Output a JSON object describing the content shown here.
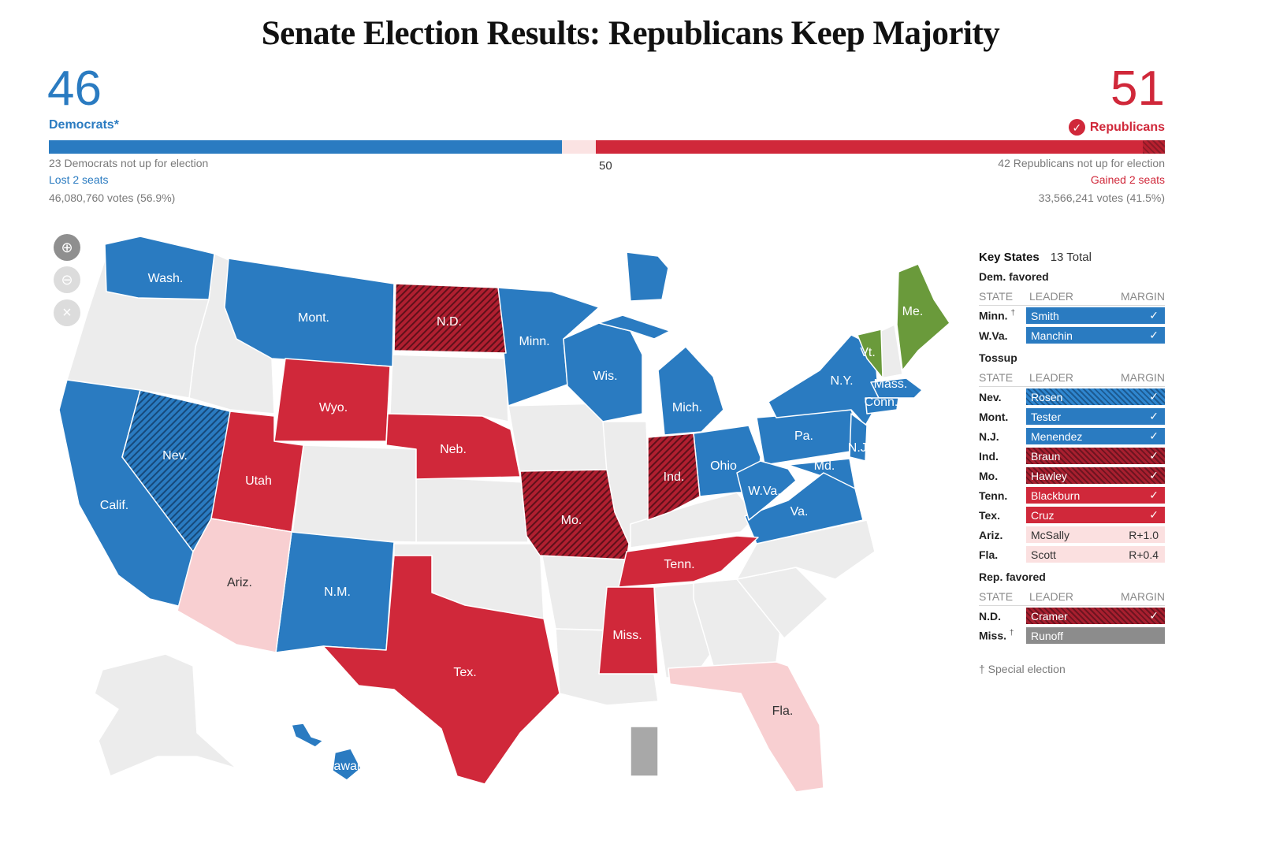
{
  "title": "Senate Election Results: Republicans Keep Majority",
  "dem": {
    "count": "46",
    "label": "Democrats*",
    "not_up": "23 Democrats not up for election",
    "change": "Lost 2 seats",
    "votes": "46,080,760 votes (56.9%)",
    "color": "#2a7bc1"
  },
  "rep": {
    "count": "51",
    "label": "Republicans",
    "not_up": "42 Republicans not up for election",
    "change": "Gained 2 seats",
    "votes": "33,566,241 votes (41.5%)",
    "color": "#d0283a",
    "winner_icon": "check-circle-icon"
  },
  "majority_marker": "50",
  "seat_bar": {
    "dem_seats": 46,
    "rep_seats": 51,
    "total": 100
  },
  "zoom_controls": [
    {
      "icon": "zoom-in-icon"
    },
    {
      "icon": "zoom-out-icon"
    },
    {
      "icon": "reset-close-icon"
    }
  ],
  "map_labels": {
    "wash": "Wash.",
    "mont": "Mont.",
    "nd": "N.D.",
    "minn": "Minn.",
    "me": "Me.",
    "vt": "Vt.",
    "wis": "Wis.",
    "mich": "Mich.",
    "ny": "N.Y.",
    "mass": "Mass.",
    "conn": "Conn.",
    "wyo": "Wyo.",
    "neb": "Neb.",
    "nev": "Nev.",
    "calif": "Calif.",
    "utah": "Utah",
    "pa": "Pa.",
    "nj": "N.J.",
    "md": "Md.",
    "ohio": "Ohio",
    "ind": "Ind.",
    "wva": "W.Va.",
    "va": "Va.",
    "mo": "Mo.",
    "tenn": "Tenn.",
    "ariz": "Ariz.",
    "nm": "N.M.",
    "miss": "Miss.",
    "tex": "Tex.",
    "fla": "Fla.",
    "hawaii": "Hawaii"
  },
  "map_colors": {
    "dem": "#2a7bc1",
    "rep": "#d0283a",
    "rep_lean": "#f8cfd1",
    "independent": "#6a9a3b",
    "no_race": "#ececec",
    "runoff": "#a8a8a8"
  },
  "key_states": {
    "title": "Key States",
    "total": "13 Total",
    "columns": [
      "STATE",
      "LEADER",
      "MARGIN"
    ],
    "groups": [
      {
        "title": "Dem. favored",
        "rows": [
          {
            "state": "Minn.",
            "special": "†",
            "leader": "Smith",
            "margin": "✓",
            "style": "dem"
          },
          {
            "state": "W.Va.",
            "special": "",
            "leader": "Manchin",
            "margin": "✓",
            "style": "dem"
          }
        ]
      },
      {
        "title": "Tossup",
        "rows": [
          {
            "state": "Nev.",
            "special": "",
            "leader": "Rosen",
            "margin": "✓",
            "style": "dem-h"
          },
          {
            "state": "Mont.",
            "special": "",
            "leader": "Tester",
            "margin": "✓",
            "style": "dem"
          },
          {
            "state": "N.J.",
            "special": "",
            "leader": "Menendez",
            "margin": "✓",
            "style": "dem"
          },
          {
            "state": "Ind.",
            "special": "",
            "leader": "Braun",
            "margin": "✓",
            "style": "rep-h"
          },
          {
            "state": "Mo.",
            "special": "",
            "leader": "Hawley",
            "margin": "✓",
            "style": "rep-h"
          },
          {
            "state": "Tenn.",
            "special": "",
            "leader": "Blackburn",
            "margin": "✓",
            "style": "rep"
          },
          {
            "state": "Tex.",
            "special": "",
            "leader": "Cruz",
            "margin": "✓",
            "style": "rep"
          },
          {
            "state": "Ariz.",
            "special": "",
            "leader": "McSally",
            "margin": "R+1.0",
            "style": "rep-lean"
          },
          {
            "state": "Fla.",
            "special": "",
            "leader": "Scott",
            "margin": "R+0.4",
            "style": "rep-lean"
          }
        ]
      },
      {
        "title": "Rep. favored",
        "rows": [
          {
            "state": "N.D.",
            "special": "",
            "leader": "Cramer",
            "margin": "✓",
            "style": "rep-h"
          },
          {
            "state": "Miss.",
            "special": "†",
            "leader": "Runoff",
            "margin": "",
            "style": "runoff"
          }
        ]
      }
    ],
    "note": "† Special election"
  }
}
